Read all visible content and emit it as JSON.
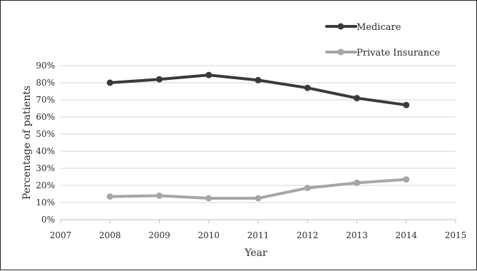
{
  "chart_data": {
    "type": "line",
    "x": [
      2008,
      2009,
      2010,
      2011,
      2012,
      2013,
      2014
    ],
    "xlim": [
      2007,
      2015
    ],
    "ylim": [
      0,
      90
    ],
    "y_unit": "%",
    "x_ticks": [
      "2007",
      "2008",
      "2009",
      "2010",
      "2011",
      "2012",
      "2013",
      "2014",
      "2015"
    ],
    "y_ticks": [
      "0%",
      "10%",
      "20%",
      "30%",
      "40%",
      "50%",
      "60%",
      "70%",
      "80%",
      "90%"
    ],
    "xlabel": "Year",
    "ylabel": "Percentage of patients",
    "grid": "horizontal",
    "legend_position": "top-right",
    "series": [
      {
        "name": "Medicare",
        "color": "#3a3a3a",
        "values": [
          80,
          82,
          84.5,
          81.5,
          77,
          71,
          67
        ]
      },
      {
        "name": "Private Insurance",
        "color": "#a6a6a6",
        "values": [
          13.5,
          14,
          12.5,
          12.5,
          18.5,
          21.5,
          23.5
        ]
      }
    ]
  }
}
